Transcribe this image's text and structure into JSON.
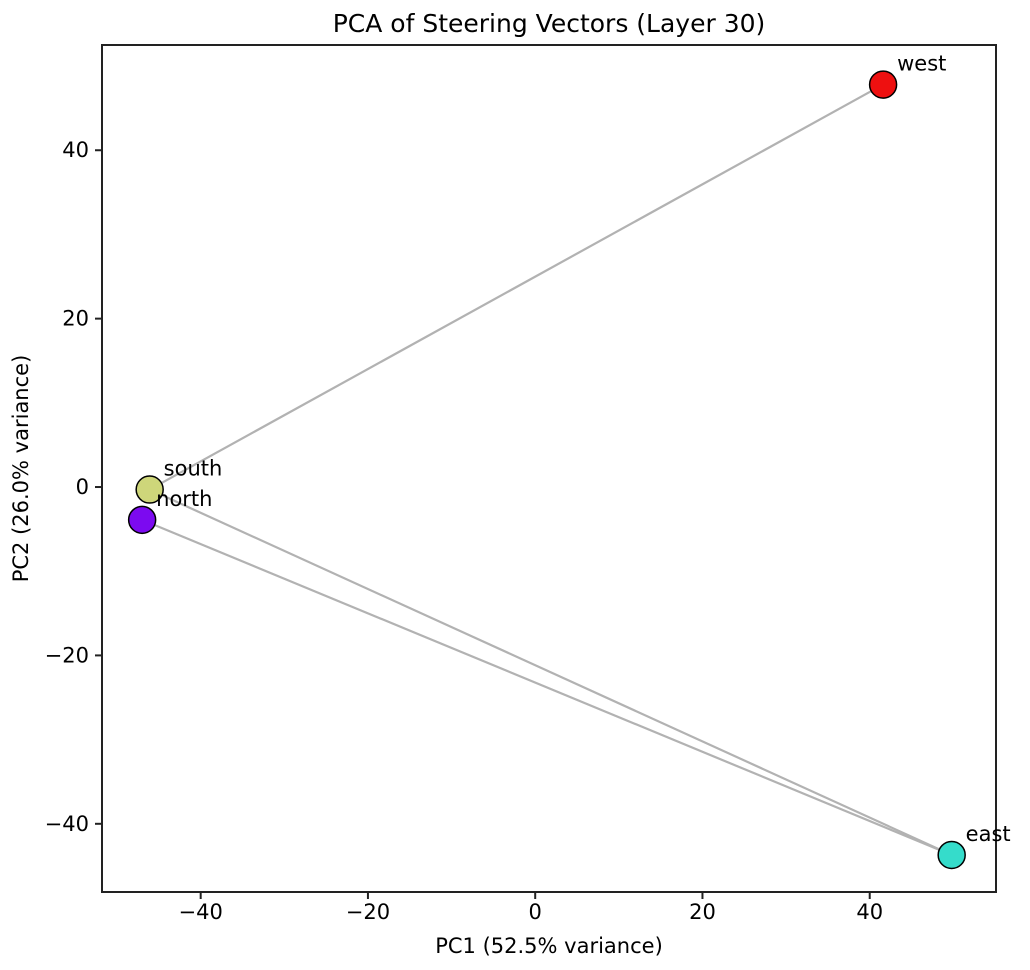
{
  "page": {
    "background": "#ffffff"
  },
  "chart_data": {
    "type": "scatter",
    "title": "PCA of Steering Vectors (Layer 30)",
    "xlabel": "PC1 (52.5% variance)",
    "ylabel": "PC2 (26.0% variance)",
    "xlim": [
      -51.8,
      55.1
    ],
    "ylim": [
      -48.1,
      52.5
    ],
    "x_ticks": [
      -40,
      -20,
      0,
      20,
      40
    ],
    "y_ticks": [
      -40,
      -20,
      0,
      20,
      40
    ],
    "grid": false,
    "legend": "none",
    "points": [
      {
        "label": "west",
        "pc1": 41.6,
        "pc2": 47.8,
        "color": "#ee1010"
      },
      {
        "label": "south",
        "pc1": -46.1,
        "pc2": -0.3,
        "color": "#ced67a"
      },
      {
        "label": "north",
        "pc1": -47.0,
        "pc2": -3.9,
        "color": "#7c0af0"
      },
      {
        "label": "east",
        "pc1": 49.8,
        "pc2": -43.7,
        "color": "#35dccb"
      }
    ],
    "edges": [
      [
        "west",
        "south"
      ],
      [
        "south",
        "east"
      ],
      [
        "north",
        "east"
      ]
    ],
    "edge_color": "#b2b2b2",
    "marker_edge_color": "#000000",
    "spine_color": "#222222",
    "text_color": "#000000"
  }
}
